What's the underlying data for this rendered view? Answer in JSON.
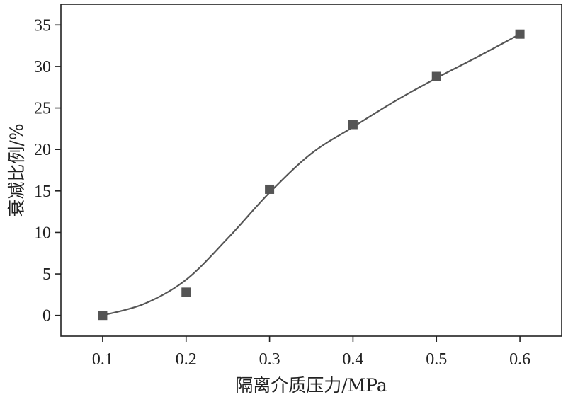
{
  "chart_data": {
    "type": "scatter",
    "xlabel": "隔离介质压力/MPa",
    "ylabel": "衰减比例/%",
    "xlim": [
      0.05,
      0.65
    ],
    "ylim": [
      -2.5,
      37.5
    ],
    "xticks": [
      0.1,
      0.2,
      0.3,
      0.4,
      0.5,
      0.6
    ],
    "xtick_labels": [
      "0.1",
      "0.2",
      "0.3",
      "0.4",
      "0.5",
      "0.6"
    ],
    "yticks": [
      0,
      5,
      10,
      15,
      20,
      25,
      30,
      35
    ],
    "ytick_labels": [
      "0",
      "5",
      "10",
      "15",
      "20",
      "25",
      "30",
      "35"
    ],
    "grid": false,
    "series": [
      {
        "marker": "square",
        "color": "#555555",
        "x": [
          0.1,
          0.2,
          0.3,
          0.4,
          0.5,
          0.6
        ],
        "y": [
          0.0,
          2.8,
          15.2,
          23.0,
          28.8,
          33.9
        ]
      }
    ],
    "fit_line": {
      "color": "#555555",
      "x": [
        0.1,
        0.15,
        0.2,
        0.25,
        0.3,
        0.35,
        0.4,
        0.45,
        0.5,
        0.55,
        0.6
      ],
      "y": [
        0.0,
        1.4,
        4.3,
        9.3,
        14.8,
        19.5,
        22.7,
        25.8,
        28.6,
        31.2,
        33.9
      ]
    }
  }
}
